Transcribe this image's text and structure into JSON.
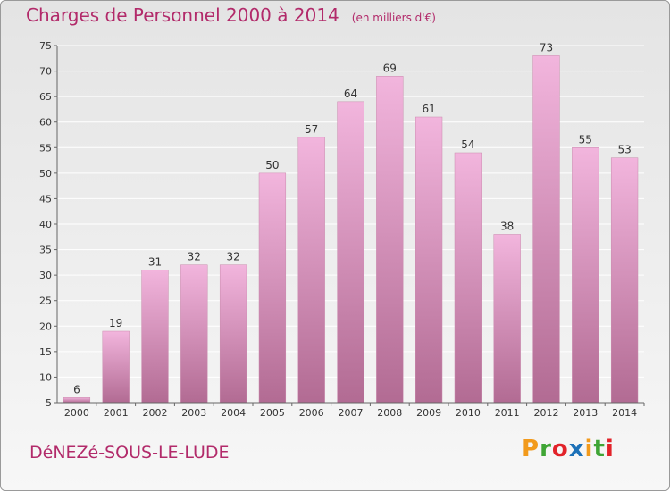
{
  "title": "Charges de Personnel 2000 à 2014",
  "subtitle": "(en milliers d'€)",
  "commune": "DéNEZé-SOUS-LE-LUDE",
  "logo": {
    "letters": [
      "P",
      "r",
      "o",
      "x",
      "i",
      "t",
      "i"
    ],
    "colors": [
      "#f29a1c",
      "#3fa535",
      "#e2232a",
      "#1d71b8",
      "#f29a1c",
      "#3fa535",
      "#e2232a"
    ]
  },
  "colors": {
    "bar_light": "#f2b5dd",
    "bar_dark": "#b26b93",
    "text": "#b22a6a"
  },
  "chart_data": {
    "type": "bar",
    "categories": [
      "2000",
      "2001",
      "2002",
      "2003",
      "2004",
      "2005",
      "2006",
      "2007",
      "2008",
      "2009",
      "2010",
      "2011",
      "2012",
      "2013",
      "2014"
    ],
    "values": [
      6,
      19,
      31,
      32,
      32,
      50,
      57,
      64,
      69,
      61,
      54,
      38,
      73,
      55,
      53
    ],
    "ylim": [
      5,
      75
    ],
    "yticks": [
      5,
      10,
      15,
      20,
      25,
      30,
      35,
      40,
      45,
      50,
      55,
      60,
      65,
      70,
      75
    ],
    "grid": true
  }
}
